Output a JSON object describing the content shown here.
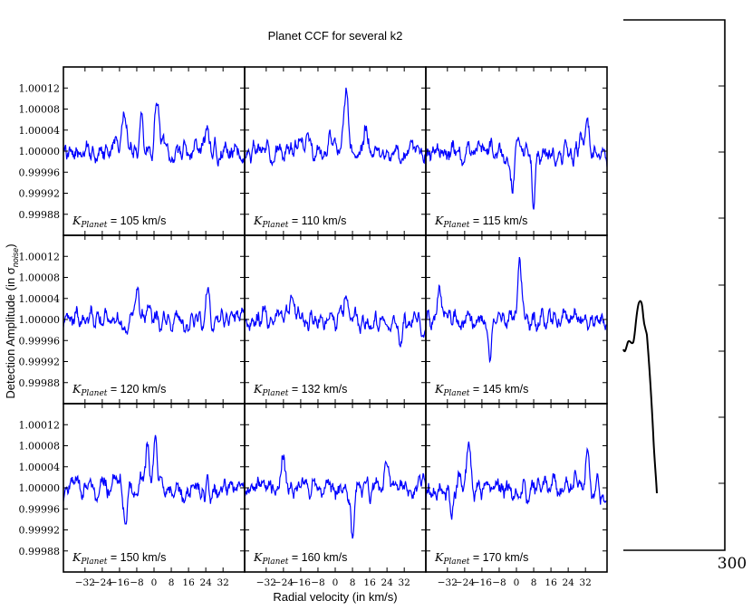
{
  "figure": {
    "title": "Planet CCF for several k2",
    "xlabel": "Radial velocity (in km/s)",
    "ylabel_prefix": "Detection Amplitude (in σ",
    "ylabel_sub": "noise",
    "ylabel_suffix": ")",
    "right_fragment_label": "300"
  },
  "colors": {
    "line": "#0000ff",
    "axes": "#000000",
    "right_fragment": "#000000"
  },
  "chart_data": {
    "type": "line",
    "layout": "3x3 grid, shared axes",
    "xlim": [
      -42,
      42
    ],
    "ylim": [
      0.99984,
      1.00016
    ],
    "yticks": [
      "0.99988",
      "0.99992",
      "0.99996",
      "1.00000",
      "1.00004",
      "1.00008",
      "1.00012"
    ],
    "ytick_values": [
      0.99988,
      0.99992,
      0.99996,
      1.0,
      1.00004,
      1.00008,
      1.00012
    ],
    "xticks": [
      "−32",
      "−24",
      "−16",
      "−8",
      "0",
      "8",
      "16",
      "24",
      "32"
    ],
    "xtick_values": [
      -32,
      -24,
      -16,
      -8,
      0,
      8,
      16,
      24,
      32
    ],
    "grid": false,
    "panels": [
      {
        "label_math": "K",
        "label_sub": "Planet",
        "label_text": " = 105 km/s",
        "peaks": [
          [
            1.5,
            0.0001
          ],
          [
            -6,
            6e-05
          ],
          [
            -14,
            6e-05
          ],
          [
            25,
            5e-05
          ]
        ]
      },
      {
        "label_math": "K",
        "label_sub": "Planet",
        "label_text": " = 110 km/s",
        "peaks": [
          [
            5,
            0.00011
          ],
          [
            -2,
            3e-05
          ],
          [
            14,
            4e-05
          ]
        ]
      },
      {
        "label_math": "K",
        "label_sub": "Planet",
        "label_text": " = 115 km/s",
        "peaks": [
          [
            -2,
            -8e-05
          ],
          [
            8,
            -9e-05
          ],
          [
            33,
            6e-05
          ]
        ]
      },
      {
        "label_math": "K",
        "label_sub": "Planet",
        "label_text": " = 120 km/s",
        "peaks": [
          [
            -8,
            5e-05
          ],
          [
            25,
            5e-05
          ],
          [
            -2,
            4e-05
          ]
        ]
      },
      {
        "label_math": "K",
        "label_sub": "Planet",
        "label_text": " = 132 km/s",
        "peaks": [
          [
            5,
            5e-05
          ],
          [
            -20,
            4e-05
          ],
          [
            30,
            -6e-05
          ]
        ]
      },
      {
        "label_math": "K",
        "label_sub": "Planet",
        "label_text": " = 145 km/s",
        "peaks": [
          [
            1.5,
            0.00011
          ],
          [
            -12,
            -7e-05
          ],
          [
            -36,
            6e-05
          ]
        ]
      },
      {
        "label_math": "K",
        "label_sub": "Planet",
        "label_text": " = 150 km/s",
        "peaks": [
          [
            0.5,
            9e-05
          ],
          [
            -13,
            -6e-05
          ],
          [
            -3,
            7e-05
          ]
        ]
      },
      {
        "label_math": "K",
        "label_sub": "Planet",
        "label_text": " = 160 km/s",
        "peaks": [
          [
            -24,
            6e-05
          ],
          [
            8,
            -9e-05
          ],
          [
            24,
            5e-05
          ]
        ]
      },
      {
        "label_math": "K",
        "label_sub": "Planet",
        "label_text": " = 170 km/s",
        "peaks": [
          [
            -22,
            9e-05
          ],
          [
            -30,
            -6e-05
          ],
          [
            33,
            6e-05
          ]
        ]
      }
    ]
  }
}
